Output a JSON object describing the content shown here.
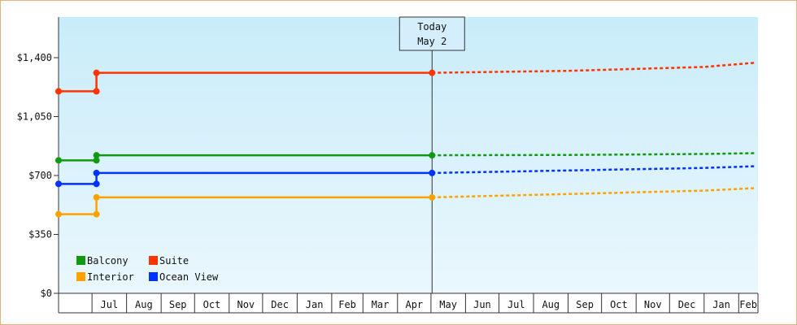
{
  "chart_data": {
    "type": "line",
    "title": "",
    "xlabel": "",
    "ylabel": "",
    "ylim": [
      0,
      1400
    ],
    "y_ticks": [
      {
        "value": 0,
        "label": "$0"
      },
      {
        "value": 350,
        "label": "$350"
      },
      {
        "value": 700,
        "label": "$700"
      },
      {
        "value": 1050,
        "label": "$1,050"
      },
      {
        "value": 1400,
        "label": "$1,400"
      }
    ],
    "x_range": [
      "2021-06-01",
      "2022-09-01"
    ],
    "month_ticks": [
      {
        "date": "2021-07-01",
        "label": "Jul"
      },
      {
        "date": "2021-08-01",
        "label": "Aug"
      },
      {
        "date": "2021-09-01",
        "label": "Sep"
      },
      {
        "date": "2021-10-01",
        "label": "Oct"
      },
      {
        "date": "2021-11-01",
        "label": "Nov"
      },
      {
        "date": "2021-12-01",
        "label": "Dec"
      },
      {
        "date": "2022-01-01",
        "label": "Jan"
      },
      {
        "date": "2022-02-01",
        "label": "Feb"
      },
      {
        "date": "2022-03-01",
        "label": "Mar"
      },
      {
        "date": "2022-04-01",
        "label": "Apr"
      },
      {
        "date": "2022-05-01",
        "label": "May"
      },
      {
        "date": "2022-06-01",
        "label": "Jun"
      },
      {
        "date": "2022-07-01",
        "label": "Jul"
      },
      {
        "date": "2022-08-01",
        "label": "Aug"
      },
      {
        "date": "2022-09-01",
        "label": "Sep"
      },
      {
        "date": "2022-10-01",
        "label": "Oct"
      },
      {
        "date": "2022-11-01",
        "label": "Nov"
      },
      {
        "date": "2022-12-01",
        "label": "Dec"
      },
      {
        "date": "2023-01-01",
        "label": "Jan"
      },
      {
        "date": "2023-02-01",
        "label": "Feb"
      }
    ],
    "today": {
      "line1": "Today",
      "line2": "May 2",
      "date": "2022-05-02"
    },
    "series": [
      {
        "name": "Suite",
        "color": "#ff3300",
        "history": [
          {
            "date": "2021-06-01",
            "value": 1200
          },
          {
            "date": "2021-07-05",
            "value": 1200
          },
          {
            "date": "2021-07-05",
            "value": 1310
          },
          {
            "date": "2022-05-02",
            "value": 1310
          }
        ],
        "forecast": [
          {
            "date": "2022-05-02",
            "value": 1310
          },
          {
            "date": "2022-09-01",
            "value": 1322
          },
          {
            "date": "2023-01-01",
            "value": 1345
          },
          {
            "date": "2023-03-01",
            "value": 1370
          }
        ]
      },
      {
        "name": "Balcony",
        "color": "#119911",
        "history": [
          {
            "date": "2021-06-01",
            "value": 790
          },
          {
            "date": "2021-07-05",
            "value": 790
          },
          {
            "date": "2021-07-05",
            "value": 820
          },
          {
            "date": "2022-05-02",
            "value": 820
          }
        ],
        "forecast": [
          {
            "date": "2022-05-02",
            "value": 820
          },
          {
            "date": "2022-09-01",
            "value": 822
          },
          {
            "date": "2023-01-01",
            "value": 828
          },
          {
            "date": "2023-03-01",
            "value": 833
          }
        ]
      },
      {
        "name": "Ocean View",
        "color": "#0033ff",
        "history": [
          {
            "date": "2021-06-01",
            "value": 650
          },
          {
            "date": "2021-07-05",
            "value": 650
          },
          {
            "date": "2021-07-05",
            "value": 715
          },
          {
            "date": "2022-05-02",
            "value": 715
          }
        ],
        "forecast": [
          {
            "date": "2022-05-02",
            "value": 715
          },
          {
            "date": "2022-09-01",
            "value": 730
          },
          {
            "date": "2023-01-01",
            "value": 745
          },
          {
            "date": "2023-03-01",
            "value": 755
          }
        ]
      },
      {
        "name": "Interior",
        "color": "#ffa200",
        "history": [
          {
            "date": "2021-06-01",
            "value": 470
          },
          {
            "date": "2021-07-05",
            "value": 470
          },
          {
            "date": "2021-07-05",
            "value": 570
          },
          {
            "date": "2022-05-02",
            "value": 570
          }
        ],
        "forecast": [
          {
            "date": "2022-05-02",
            "value": 570
          },
          {
            "date": "2022-09-01",
            "value": 590
          },
          {
            "date": "2023-01-01",
            "value": 610
          },
          {
            "date": "2023-03-01",
            "value": 625
          }
        ]
      }
    ],
    "legend": {
      "placement": "bottom-left",
      "items": [
        {
          "series": "Balcony"
        },
        {
          "series": "Suite"
        },
        {
          "series": "Interior"
        },
        {
          "series": "Ocean View"
        }
      ]
    }
  }
}
